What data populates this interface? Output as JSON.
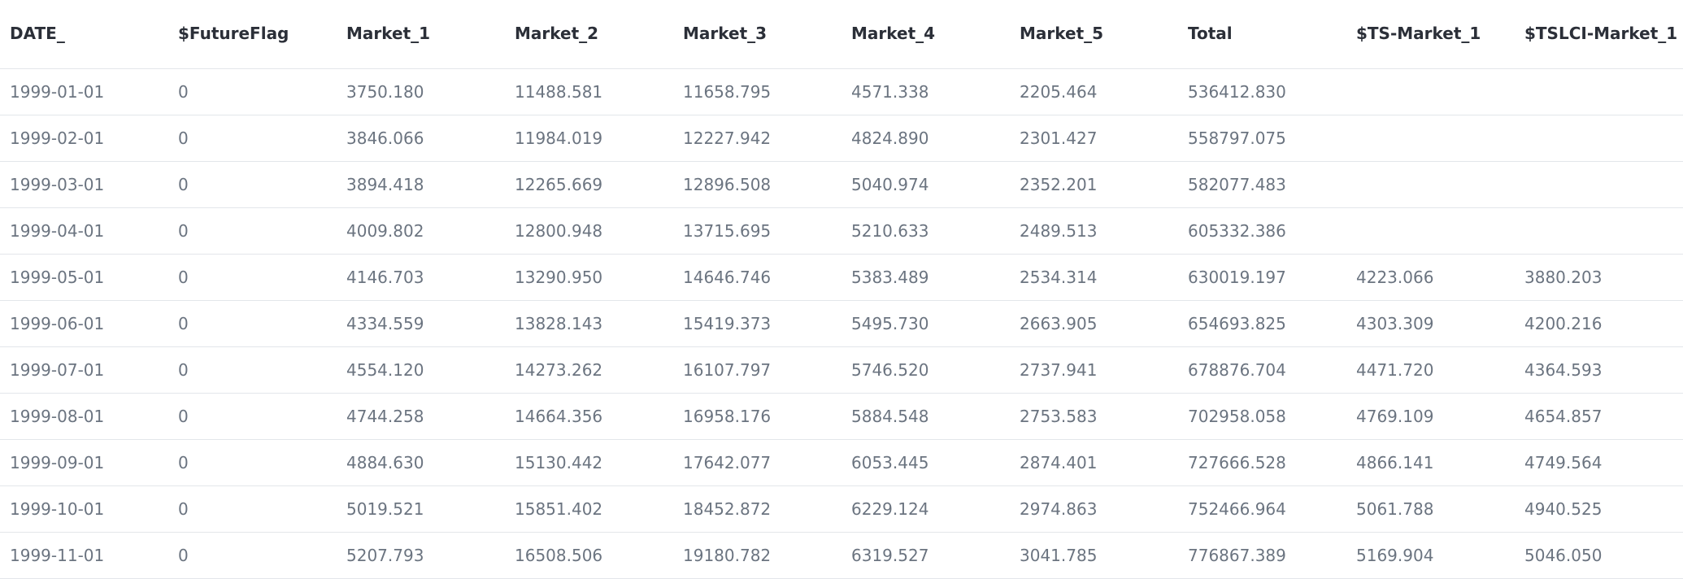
{
  "table": {
    "columns": [
      "DATE_",
      "$FutureFlag",
      "Market_1",
      "Market_2",
      "Market_3",
      "Market_4",
      "Market_5",
      "Total",
      "$TS-Market_1",
      "$TSLCI-Market_1"
    ],
    "rows": [
      [
        "1999-01-01",
        "0",
        "3750.180",
        "11488.581",
        "11658.795",
        "4571.338",
        "2205.464",
        "536412.830",
        "",
        ""
      ],
      [
        "1999-02-01",
        "0",
        "3846.066",
        "11984.019",
        "12227.942",
        "4824.890",
        "2301.427",
        "558797.075",
        "",
        ""
      ],
      [
        "1999-03-01",
        "0",
        "3894.418",
        "12265.669",
        "12896.508",
        "5040.974",
        "2352.201",
        "582077.483",
        "",
        ""
      ],
      [
        "1999-04-01",
        "0",
        "4009.802",
        "12800.948",
        "13715.695",
        "5210.633",
        "2489.513",
        "605332.386",
        "",
        ""
      ],
      [
        "1999-05-01",
        "0",
        "4146.703",
        "13290.950",
        "14646.746",
        "5383.489",
        "2534.314",
        "630019.197",
        "4223.066",
        "3880.203"
      ],
      [
        "1999-06-01",
        "0",
        "4334.559",
        "13828.143",
        "15419.373",
        "5495.730",
        "2663.905",
        "654693.825",
        "4303.309",
        "4200.216"
      ],
      [
        "1999-07-01",
        "0",
        "4554.120",
        "14273.262",
        "16107.797",
        "5746.520",
        "2737.941",
        "678876.704",
        "4471.720",
        "4364.593"
      ],
      [
        "1999-08-01",
        "0",
        "4744.258",
        "14664.356",
        "16958.176",
        "5884.548",
        "2753.583",
        "702958.058",
        "4769.109",
        "4654.857"
      ],
      [
        "1999-09-01",
        "0",
        "4884.630",
        "15130.442",
        "17642.077",
        "6053.445",
        "2874.401",
        "727666.528",
        "4866.141",
        "4749.564"
      ],
      [
        "1999-10-01",
        "0",
        "5019.521",
        "15851.402",
        "18452.872",
        "6229.124",
        "2974.863",
        "752466.964",
        "5061.788",
        "4940.525"
      ],
      [
        "1999-11-01",
        "0",
        "5207.793",
        "16508.506",
        "19180.782",
        "6319.527",
        "3041.785",
        "776867.389",
        "5169.904",
        "5046.050"
      ]
    ]
  }
}
